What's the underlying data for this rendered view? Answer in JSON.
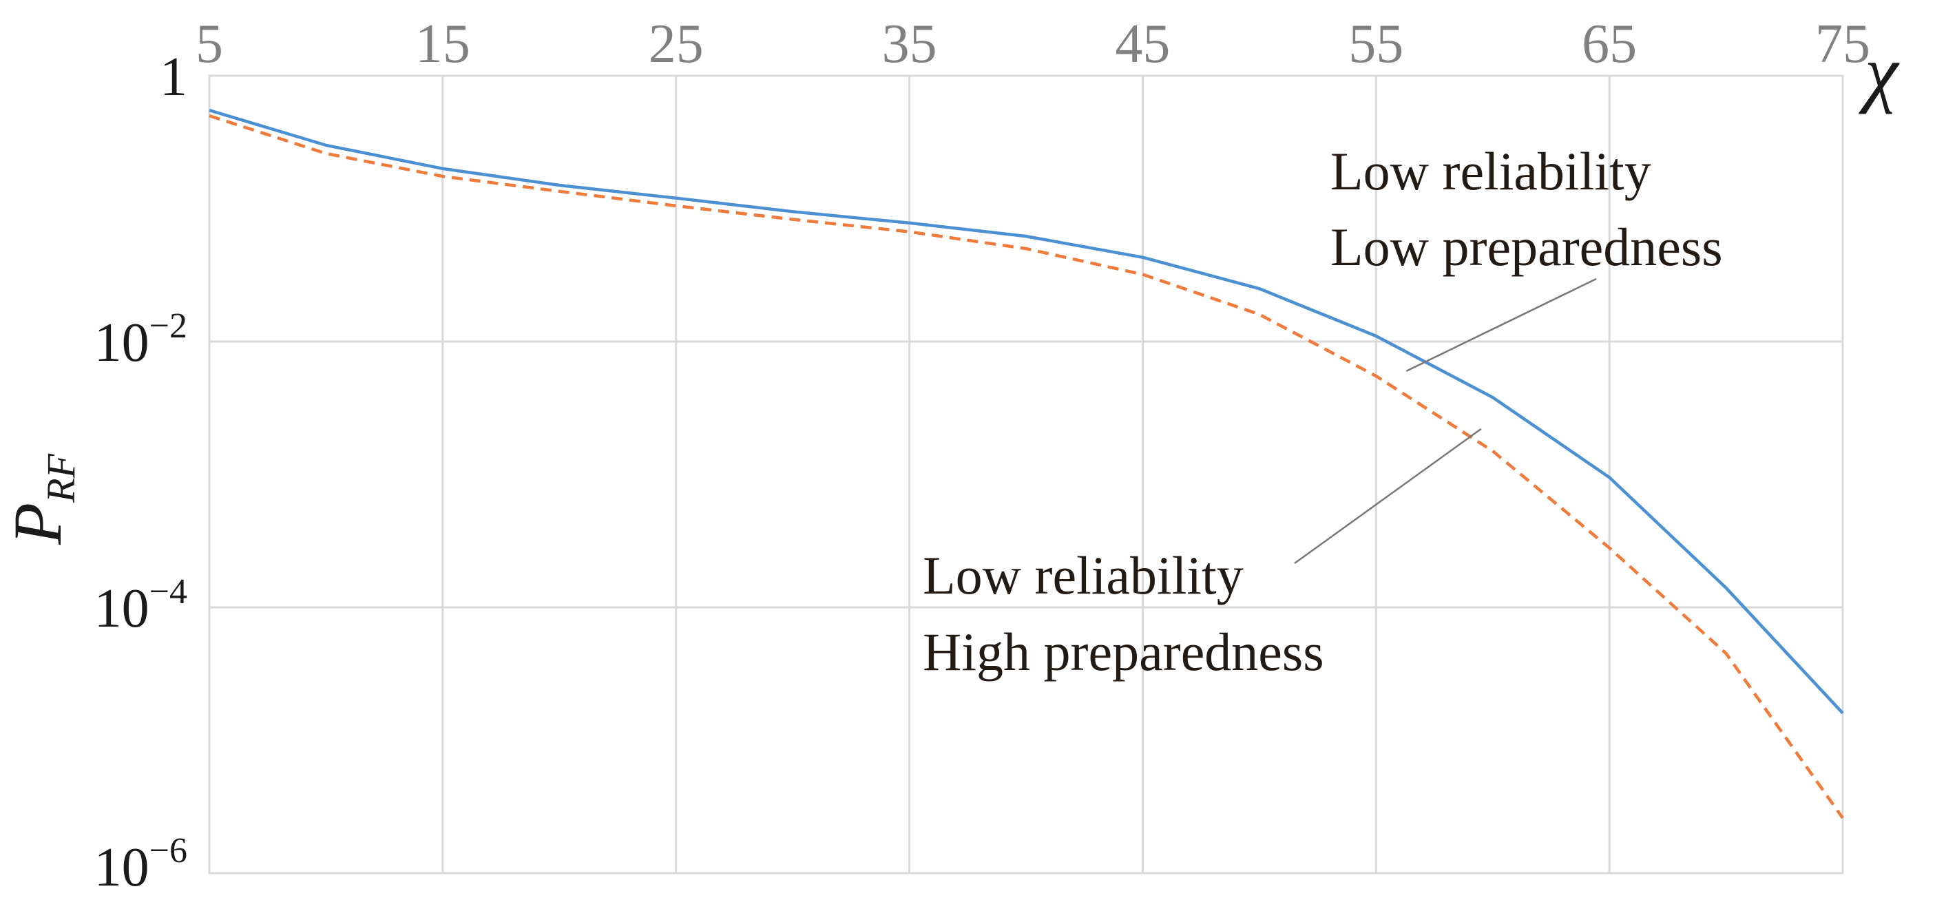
{
  "chart_data": {
    "type": "line",
    "title": "",
    "xlabel": "χ",
    "ylabel": "P",
    "ylabel_subscript": "RF",
    "xlim": [
      5,
      75
    ],
    "ylim": [
      1e-06,
      1
    ],
    "yscale": "log",
    "x_ticks": [
      "5",
      "15",
      "25",
      "35",
      "45",
      "55",
      "65",
      "75"
    ],
    "x_tick_values": [
      5,
      15,
      25,
      35,
      45,
      55,
      65,
      75
    ],
    "x_axis_position": "top",
    "y_ticks": [
      {
        "value": 1,
        "base": "1",
        "exp": ""
      },
      {
        "value": 0.01,
        "base": "10",
        "exp": "−2"
      },
      {
        "value": 0.0001,
        "base": "10",
        "exp": "−4"
      },
      {
        "value": 1e-06,
        "base": "10",
        "exp": "−6"
      }
    ],
    "grid": true,
    "x": [
      5,
      10,
      15,
      20,
      25,
      30,
      35,
      40,
      45,
      50,
      55,
      60,
      65,
      70,
      75
    ],
    "series": [
      {
        "name": "Low reliability Low preparedness",
        "color": "#4a90d2",
        "style": "solid",
        "values": [
          0.55,
          0.3,
          0.2,
          0.15,
          0.12,
          0.095,
          0.078,
          0.062,
          0.043,
          0.025,
          0.011,
          0.0038,
          0.00095,
          0.00014,
          1.6e-05
        ]
      },
      {
        "name": "Low reliability High preparedness",
        "color": "#f07a3a",
        "style": "dashed",
        "values": [
          0.5,
          0.26,
          0.175,
          0.135,
          0.105,
          0.083,
          0.067,
          0.05,
          0.032,
          0.016,
          0.0055,
          0.0015,
          0.00028,
          4.5e-05,
          2.6e-06
        ]
      }
    ],
    "annotations": [
      {
        "series": 0,
        "lines": [
          "Low reliability",
          "Low preparedness"
        ],
        "anchor_x": 56.3,
        "anchor_y": 0.006
      },
      {
        "series": 1,
        "lines": [
          "Low reliability",
          "High preparedness"
        ],
        "anchor_x": 59.5,
        "anchor_y": 0.0022
      }
    ]
  }
}
